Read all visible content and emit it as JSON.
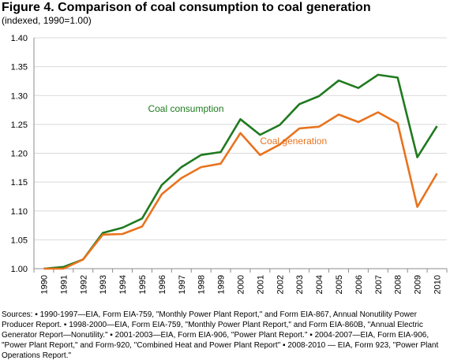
{
  "title": "Figure 4. Comparison of coal consumption to coal generation",
  "subtitle": "(indexed, 1990=1.00)",
  "sources": "Sources: ▪ 1990-1997—EIA, Form EIA-759, \"Monthly Power Plant Report,\" and Form EIA-867, Annual Nonutility Power Producer Report. ▪ 1998-2000—EIA, Form EIA-759, \"Monthly Power Plant Report,\" and Form EIA-860B, \"Annual Electric Generator Report—Nonutility.\" ▪ 2001-2003—EIA, Form EIA-906, \"Power Plant Report.\" ▪ 2004-2007—EIA, Form EIA-906, \"Power Plant Report,\" and Form-920, \"Combined Heat and Power Plant Report\" ▪ 2008-2010 — EIA, Form 923, \"Power Plant Operations Report.\"",
  "chart_data": {
    "type": "line",
    "title": "Figure 4. Comparison of coal consumption to coal generation",
    "subtitle": "(indexed, 1990=1.00)",
    "xlabel": "",
    "ylabel": "",
    "x": [
      "1990",
      "1991",
      "1992",
      "1993",
      "1994",
      "1995",
      "1996",
      "1997",
      "1998",
      "1999",
      "2000",
      "2001",
      "2002",
      "2003",
      "2004",
      "2005",
      "2006",
      "2007",
      "2008",
      "2009",
      "2010"
    ],
    "ylim": [
      1.0,
      1.4
    ],
    "yticks": [
      "1.00",
      "1.05",
      "1.10",
      "1.15",
      "1.20",
      "1.25",
      "1.30",
      "1.35",
      "1.40"
    ],
    "grid": "horizontal",
    "legend": "inline labels",
    "series": [
      {
        "name": "Coal consumption",
        "color": "#1f7a1f",
        "values": [
          1.0,
          1.003,
          1.016,
          1.062,
          1.071,
          1.087,
          1.145,
          1.176,
          1.197,
          1.202,
          1.259,
          1.232,
          1.249,
          1.285,
          1.299,
          1.326,
          1.313,
          1.336,
          1.331,
          1.193,
          1.247
        ]
      },
      {
        "name": "Coal generation",
        "color": "#e8731e",
        "values": [
          1.0,
          1.0,
          1.016,
          1.059,
          1.06,
          1.073,
          1.129,
          1.157,
          1.176,
          1.182,
          1.235,
          1.197,
          1.215,
          1.243,
          1.246,
          1.267,
          1.254,
          1.271,
          1.252,
          1.107,
          1.165
        ]
      }
    ]
  }
}
